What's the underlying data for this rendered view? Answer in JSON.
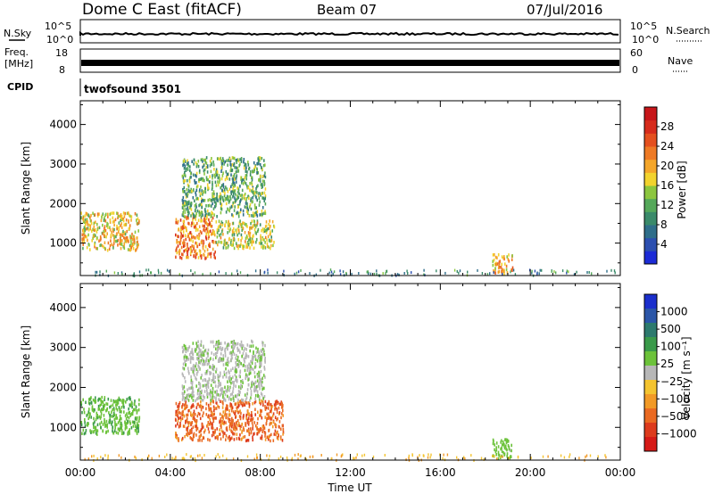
{
  "header": {
    "title": "Dome C East (fitACF)",
    "beam": "Beam 07",
    "date": "07/Jul/2016"
  },
  "aux_panels": {
    "nsky_label": "N.Sky",
    "nsky_ticks": [
      "10^5",
      "10^0"
    ],
    "nsearch_label": "N.Search",
    "nsearch_ticks": [
      "10^5",
      "10^0"
    ],
    "freq_label_1": "Freq.",
    "freq_label_2": "[MHz]",
    "freq_ticks": [
      "18",
      "8"
    ],
    "nave_label": "Nave",
    "nave_ticks": [
      "60",
      "0"
    ],
    "cpid_label": "CPID",
    "cpid_value": "twofsound 3501"
  },
  "chart_data": [
    {
      "type": "heatmap",
      "title": "",
      "xlabel": "Time UT",
      "ylabel": "Slant Range [km]",
      "xlim_hours": [
        0,
        24
      ],
      "x_tick_labels": [
        "00:00",
        "04:00",
        "08:00",
        "12:00",
        "16:00",
        "20:00",
        "00:00"
      ],
      "ylim": [
        180,
        4600
      ],
      "y_ticks": [
        1000,
        2000,
        3000,
        4000
      ],
      "colorbar": {
        "label": "Power [dB]",
        "ticks": [
          4,
          8,
          12,
          16,
          20,
          24,
          28
        ],
        "range": [
          0,
          32
        ],
        "colors": [
          "#1c2bd6",
          "#2c4fb0",
          "#2f6e8a",
          "#3a8a6a",
          "#55a85a",
          "#8cc63f",
          "#f2d32e",
          "#f4a62a",
          "#ee7a25",
          "#e4501f",
          "#d62b1c",
          "#c7161a"
        ]
      },
      "regions": [
        {
          "t0": 0.0,
          "t1": 2.6,
          "r0": 850,
          "r1": 1800,
          "power_db": 18
        },
        {
          "t0": 4.2,
          "t1": 6.0,
          "r0": 650,
          "r1": 1700,
          "power_db": 22
        },
        {
          "t0": 6.0,
          "t1": 8.6,
          "r0": 900,
          "r1": 1600,
          "power_db": 16
        },
        {
          "t0": 4.5,
          "t1": 8.2,
          "r0": 1700,
          "r1": 3200,
          "power_db": 12
        },
        {
          "t0": 18.3,
          "t1": 19.2,
          "r0": 250,
          "r1": 750,
          "power_db": 20
        }
      ]
    },
    {
      "type": "heatmap",
      "title": "",
      "xlabel": "Time UT",
      "ylabel": "Slant Range [km]",
      "xlim_hours": [
        0,
        24
      ],
      "x_tick_labels": [
        "00:00",
        "04:00",
        "08:00",
        "12:00",
        "16:00",
        "20:00",
        "00:00"
      ],
      "ylim": [
        180,
        4600
      ],
      "y_ticks": [
        1000,
        2000,
        3000,
        4000
      ],
      "colorbar": {
        "label": "Velocity [m s⁻¹]",
        "ticks": [
          "1000",
          "500",
          "100",
          "25",
          "−25",
          "−100",
          "−500",
          "−1000"
        ],
        "colors": [
          "#1b2fcc",
          "#2b56a8",
          "#2d7a6e",
          "#3a9a4a",
          "#6cc23a",
          "#b7b7b7",
          "#f4c430",
          "#f29a26",
          "#ea6a22",
          "#dd3b1d",
          "#d61a17"
        ]
      },
      "regions": [
        {
          "t0": 0.0,
          "t1": 2.6,
          "r0": 850,
          "r1": 1800,
          "velocity": 80
        },
        {
          "t0": 4.2,
          "t1": 9.0,
          "r0": 700,
          "r1": 1700,
          "velocity": -400
        },
        {
          "t0": 4.5,
          "t1": 8.2,
          "r0": 1700,
          "r1": 3200,
          "velocity": 20
        },
        {
          "t0": 18.3,
          "t1": 19.2,
          "r0": 250,
          "r1": 750,
          "velocity": 60
        }
      ]
    }
  ]
}
